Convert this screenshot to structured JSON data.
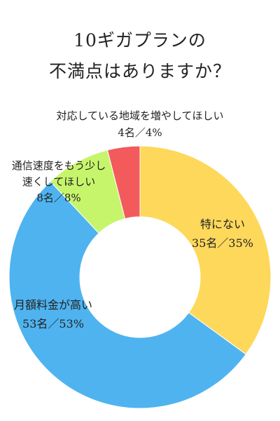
{
  "chart_data": {
    "type": "pie",
    "variant": "donut",
    "title": [
      "10ギガプランの",
      "不満点はありますか？"
    ],
    "categories": [
      "特にない",
      "月額料金が高い",
      "通信速度をもう少し速くしてほしい",
      "対応している地域を増やしてほしい"
    ],
    "values": [
      35,
      53,
      8,
      4
    ],
    "unit": "%",
    "counts": [
      35,
      53,
      8,
      4
    ],
    "colors": [
      "#FDD85B",
      "#4FB3EF",
      "#C6F56B",
      "#F25A5C"
    ],
    "labels": [
      {
        "lines": [
          "特にない",
          "35名／35%"
        ]
      },
      {
        "lines": [
          "月額料金が高い",
          "53名／53%"
        ]
      },
      {
        "lines": [
          "通信速度をもう少し",
          "速くしてほしい",
          "8名／8%"
        ]
      },
      {
        "lines": [
          "対応している地域を増やしてほしい",
          "4名／4%"
        ]
      }
    ]
  }
}
